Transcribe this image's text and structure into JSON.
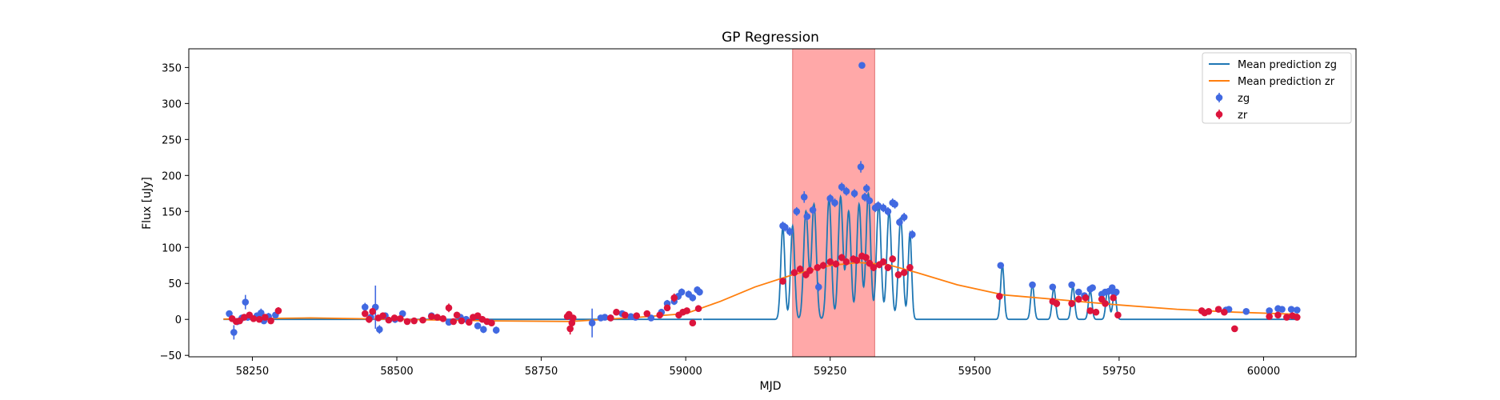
{
  "chart_data": {
    "type": "scatter",
    "title": "GP Regression",
    "xlabel": "MJD",
    "ylabel": "Flux [uJy]",
    "xlim": [
      58140,
      60160
    ],
    "ylim": [
      -52,
      376
    ],
    "xticks": [
      58250,
      58500,
      58750,
      59000,
      59250,
      59500,
      59750,
      60000
    ],
    "yticks": [
      -50,
      0,
      50,
      100,
      150,
      200,
      250,
      300,
      350
    ],
    "grid": false,
    "legend_position": "top-right",
    "shaded_region": {
      "x": [
        59185,
        59327
      ],
      "color": "#ffa8a8"
    },
    "series": [
      {
        "name": "Mean prediction zg",
        "kind": "line",
        "color": "#1f77b4"
      },
      {
        "name": "Mean prediction zr",
        "kind": "line",
        "color": "#ff7f0e"
      },
      {
        "name": "zg",
        "kind": "errorbar",
        "color": "#4169e1"
      },
      {
        "name": "zr",
        "kind": "errorbar",
        "color": "#dc143c"
      }
    ],
    "zg_points": [
      [
        58210,
        8,
        4
      ],
      [
        58218,
        -18,
        10
      ],
      [
        58224,
        -3,
        5
      ],
      [
        58232,
        2,
        4
      ],
      [
        58238,
        24,
        10
      ],
      [
        58242,
        3,
        5
      ],
      [
        58258,
        5,
        4
      ],
      [
        58265,
        9,
        6
      ],
      [
        58270,
        -2,
        4
      ],
      [
        58278,
        4,
        5
      ],
      [
        58290,
        6,
        4
      ],
      [
        58445,
        17,
        6
      ],
      [
        58455,
        3,
        4
      ],
      [
        58463,
        17,
        30
      ],
      [
        58470,
        -14,
        6
      ],
      [
        58480,
        5,
        4
      ],
      [
        58497,
        0,
        5
      ],
      [
        58510,
        8,
        4
      ],
      [
        58560,
        5,
        4
      ],
      [
        58590,
        -4,
        4
      ],
      [
        58610,
        3,
        4
      ],
      [
        58620,
        0,
        4
      ],
      [
        58640,
        -9,
        4
      ],
      [
        58650,
        -14,
        5
      ],
      [
        58672,
        -15,
        5
      ],
      [
        58838,
        -5,
        20
      ],
      [
        58853,
        2,
        4
      ],
      [
        58860,
        3,
        4
      ],
      [
        58870,
        2,
        4
      ],
      [
        58890,
        8,
        4
      ],
      [
        58905,
        4,
        4
      ],
      [
        58913,
        3,
        4
      ],
      [
        58940,
        2,
        4
      ],
      [
        58958,
        10,
        4
      ],
      [
        58968,
        22,
        5
      ],
      [
        58980,
        25,
        5
      ],
      [
        58987,
        32,
        5
      ],
      [
        58993,
        38,
        5
      ],
      [
        59005,
        35,
        5
      ],
      [
        59012,
        30,
        5
      ],
      [
        59020,
        41,
        5
      ],
      [
        59024,
        38,
        5
      ],
      [
        59168,
        130,
        6
      ],
      [
        59172,
        128,
        6
      ],
      [
        59180,
        122,
        6
      ],
      [
        59192,
        150,
        6
      ],
      [
        59205,
        170,
        8
      ],
      [
        59210,
        143,
        6
      ],
      [
        59220,
        152,
        6
      ],
      [
        59230,
        45,
        6
      ],
      [
        59250,
        168,
        6
      ],
      [
        59258,
        162,
        6
      ],
      [
        59270,
        184,
        6
      ],
      [
        59278,
        178,
        6
      ],
      [
        59292,
        175,
        6
      ],
      [
        59303,
        212,
        8
      ],
      [
        59310,
        170,
        6
      ],
      [
        59313,
        182,
        6
      ],
      [
        59318,
        165,
        6
      ],
      [
        59328,
        155,
        6
      ],
      [
        59333,
        158,
        6
      ],
      [
        59342,
        155,
        6
      ],
      [
        59350,
        150,
        6
      ],
      [
        59358,
        162,
        6
      ],
      [
        59362,
        160,
        6
      ],
      [
        59370,
        135,
        6
      ],
      [
        59378,
        142,
        6
      ],
      [
        59392,
        118,
        6
      ],
      [
        59305,
        353,
        4
      ],
      [
        59545,
        75,
        4
      ],
      [
        59600,
        48,
        4
      ],
      [
        59635,
        45,
        4
      ],
      [
        59668,
        48,
        4
      ],
      [
        59680,
        38,
        4
      ],
      [
        59690,
        33,
        4
      ],
      [
        59700,
        42,
        4
      ],
      [
        59704,
        44,
        4
      ],
      [
        59720,
        35,
        4
      ],
      [
        59726,
        38,
        4
      ],
      [
        59732,
        39,
        4
      ],
      [
        59738,
        44,
        4
      ],
      [
        59742,
        36,
        4
      ],
      [
        59745,
        38,
        4
      ],
      [
        59940,
        14,
        4
      ],
      [
        59935,
        13,
        4
      ],
      [
        59970,
        11,
        4
      ],
      [
        60010,
        12,
        4
      ],
      [
        60025,
        15,
        4
      ],
      [
        60032,
        14,
        4
      ],
      [
        60048,
        14,
        4
      ],
      [
        60058,
        13,
        4
      ]
    ],
    "zr_points": [
      [
        58215,
        1,
        4
      ],
      [
        58222,
        -3,
        4
      ],
      [
        58228,
        -2,
        4
      ],
      [
        58236,
        3,
        4
      ],
      [
        58245,
        6,
        4
      ],
      [
        58252,
        1,
        4
      ],
      [
        58262,
        0,
        4
      ],
      [
        58272,
        3,
        4
      ],
      [
        58282,
        -2,
        4
      ],
      [
        58295,
        12,
        5
      ],
      [
        58445,
        8,
        4
      ],
      [
        58452,
        0,
        5
      ],
      [
        58458,
        11,
        5
      ],
      [
        58468,
        2,
        4
      ],
      [
        58476,
        5,
        4
      ],
      [
        58486,
        -1,
        4
      ],
      [
        58496,
        2,
        4
      ],
      [
        58506,
        1,
        4
      ],
      [
        58518,
        -3,
        4
      ],
      [
        58530,
        -2,
        4
      ],
      [
        58545,
        -1,
        4
      ],
      [
        58560,
        4,
        4
      ],
      [
        58570,
        3,
        4
      ],
      [
        58580,
        1,
        4
      ],
      [
        58590,
        16,
        6
      ],
      [
        58598,
        -3,
        4
      ],
      [
        58604,
        6,
        4
      ],
      [
        58612,
        -2,
        4
      ],
      [
        58625,
        -4,
        4
      ],
      [
        58632,
        3,
        4
      ],
      [
        58640,
        5,
        4
      ],
      [
        58648,
        0,
        4
      ],
      [
        58656,
        -3,
        4
      ],
      [
        58664,
        -5,
        4
      ],
      [
        58795,
        4,
        4
      ],
      [
        58798,
        7,
        4
      ],
      [
        58800,
        -13,
        8
      ],
      [
        58803,
        -5,
        6
      ],
      [
        58805,
        2,
        4
      ],
      [
        58870,
        2,
        4
      ],
      [
        58880,
        10,
        4
      ],
      [
        58895,
        6,
        4
      ],
      [
        58915,
        5,
        4
      ],
      [
        58933,
        8,
        4
      ],
      [
        58955,
        6,
        4
      ],
      [
        58968,
        16,
        4
      ],
      [
        58980,
        30,
        6
      ],
      [
        58988,
        6,
        4
      ],
      [
        58995,
        10,
        4
      ],
      [
        59002,
        12,
        4
      ],
      [
        59012,
        -5,
        4
      ],
      [
        59022,
        15,
        4
      ],
      [
        59168,
        53,
        4
      ],
      [
        59188,
        65,
        5
      ],
      [
        59198,
        70,
        5
      ],
      [
        59208,
        62,
        5
      ],
      [
        59215,
        68,
        5
      ],
      [
        59228,
        72,
        5
      ],
      [
        59238,
        75,
        5
      ],
      [
        59250,
        80,
        5
      ],
      [
        59260,
        77,
        5
      ],
      [
        59270,
        86,
        5
      ],
      [
        59278,
        80,
        5
      ],
      [
        59290,
        84,
        5
      ],
      [
        59296,
        82,
        5
      ],
      [
        59305,
        88,
        5
      ],
      [
        59312,
        86,
        5
      ],
      [
        59318,
        78,
        5
      ],
      [
        59325,
        72,
        5
      ],
      [
        59335,
        76,
        5
      ],
      [
        59342,
        80,
        5
      ],
      [
        59350,
        72,
        5
      ],
      [
        59358,
        84,
        5
      ],
      [
        59368,
        62,
        5
      ],
      [
        59378,
        65,
        5
      ],
      [
        59388,
        72,
        5
      ],
      [
        59543,
        32,
        5
      ],
      [
        59635,
        25,
        5
      ],
      [
        59642,
        22,
        5
      ],
      [
        59668,
        22,
        5
      ],
      [
        59680,
        28,
        5
      ],
      [
        59692,
        30,
        5
      ],
      [
        59700,
        12,
        4
      ],
      [
        59710,
        10,
        4
      ],
      [
        59720,
        28,
        4
      ],
      [
        59726,
        22,
        4
      ],
      [
        59740,
        30,
        4
      ],
      [
        59748,
        6,
        4
      ],
      [
        59893,
        12,
        4
      ],
      [
        59898,
        9,
        4
      ],
      [
        59905,
        11,
        4
      ],
      [
        59922,
        14,
        4
      ],
      [
        59932,
        10,
        4
      ],
      [
        59950,
        -13,
        4
      ],
      [
        60010,
        4,
        4
      ],
      [
        60025,
        6,
        4
      ],
      [
        60040,
        3,
        4
      ],
      [
        60050,
        5,
        4
      ],
      [
        60058,
        3,
        4
      ]
    ],
    "zr_mean": [
      [
        58200,
        0.5
      ],
      [
        58350,
        2
      ],
      [
        58500,
        0
      ],
      [
        58650,
        -2
      ],
      [
        58800,
        -3
      ],
      [
        58920,
        3
      ],
      [
        59000,
        8
      ],
      [
        59060,
        25
      ],
      [
        59120,
        45
      ],
      [
        59185,
        62
      ],
      [
        59250,
        75
      ],
      [
        59300,
        79
      ],
      [
        59350,
        76
      ],
      [
        59400,
        65
      ],
      [
        59470,
        48
      ],
      [
        59550,
        34
      ],
      [
        59650,
        27
      ],
      [
        59750,
        20
      ],
      [
        59850,
        14
      ],
      [
        59950,
        10
      ],
      [
        60060,
        7
      ]
    ],
    "zg_mean_peaks": [
      [
        59168,
        128,
        3.5
      ],
      [
        59185,
        130,
        3.5
      ],
      [
        59208,
        150,
        4
      ],
      [
        59222,
        160,
        4
      ],
      [
        59248,
        168,
        4
      ],
      [
        59268,
        170,
        4
      ],
      [
        59282,
        150,
        4
      ],
      [
        59300,
        160,
        4
      ],
      [
        59316,
        175,
        4
      ],
      [
        59334,
        160,
        4
      ],
      [
        59352,
        150,
        4
      ],
      [
        59372,
        140,
        4
      ],
      [
        59388,
        120,
        3
      ],
      [
        59548,
        76,
        3
      ],
      [
        59600,
        48,
        3
      ],
      [
        59637,
        44,
        3
      ],
      [
        59670,
        46,
        3
      ],
      [
        59700,
        40,
        3
      ],
      [
        59730,
        40,
        3
      ],
      [
        59742,
        38,
        3
      ],
      [
        59985,
        18,
        4
      ],
      [
        60026,
        15,
        3
      ],
      [
        60050,
        14,
        3
      ]
    ],
    "zg_mean_segments": [
      [
        58200,
        59030,
        3
      ],
      [
        59900,
        60060,
        8
      ]
    ]
  }
}
